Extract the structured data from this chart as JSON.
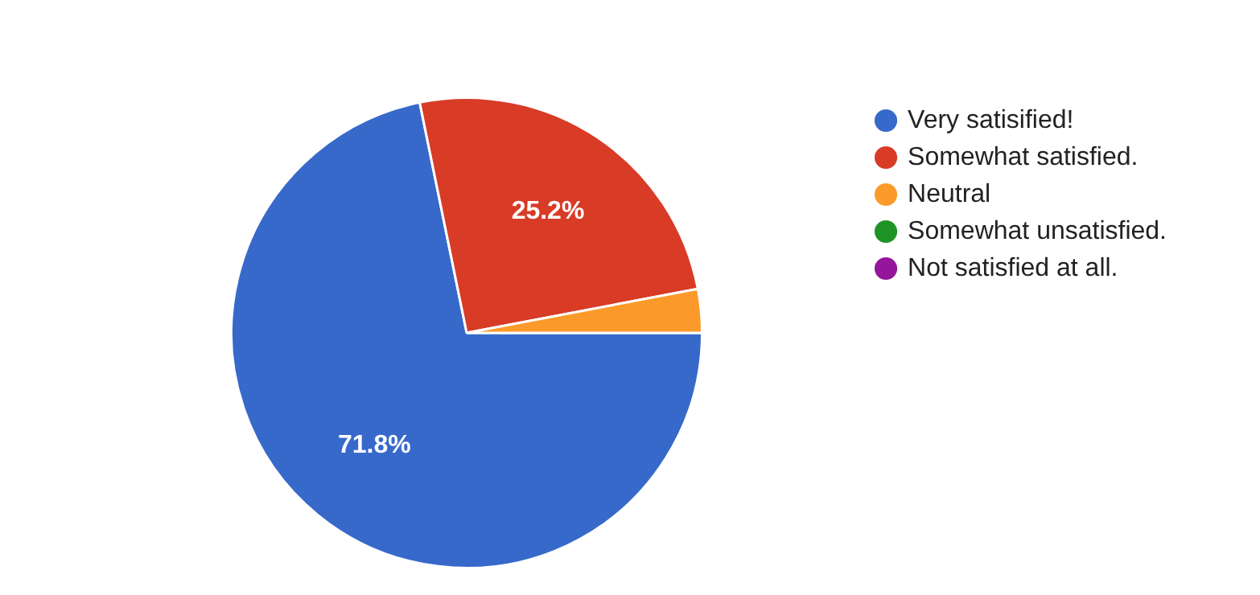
{
  "chart_data": {
    "type": "pie",
    "categories": [
      "Very satisified!",
      "Somewhat satisfied.",
      "Neutral",
      "Somewhat unsatisfied.",
      "Not satisfied at all."
    ],
    "values": [
      71.8,
      25.2,
      3.0,
      0,
      0
    ],
    "colors": [
      "#3769ca",
      "#d83b26",
      "#fb9a2a",
      "#1f9426",
      "#94169a"
    ],
    "value_labels": [
      "71.8%",
      "25.2%",
      null,
      null,
      null
    ],
    "legend": "right"
  }
}
